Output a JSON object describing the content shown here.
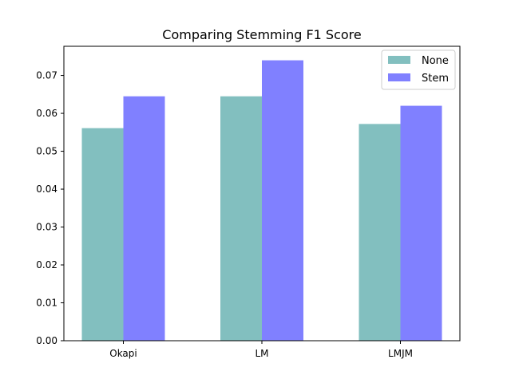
{
  "chart_data": {
    "type": "bar",
    "title": "Comparing Stemming F1 Score",
    "xlabel": "",
    "ylabel": "",
    "categories": [
      "Okapi",
      "LM",
      "LMJM"
    ],
    "series": [
      {
        "name": "None",
        "values": [
          0.0561,
          0.0645,
          0.0572
        ],
        "color": "#82bfbf"
      },
      {
        "name": "Stem",
        "values": [
          0.0645,
          0.074,
          0.062
        ],
        "color": "#8080ff"
      }
    ],
    "ylim": [
      0,
      0.0777
    ],
    "yticks": [
      "0.00",
      "0.01",
      "0.02",
      "0.03",
      "0.04",
      "0.05",
      "0.06",
      "0.07"
    ],
    "legend_position": "top-right",
    "grid": false
  }
}
